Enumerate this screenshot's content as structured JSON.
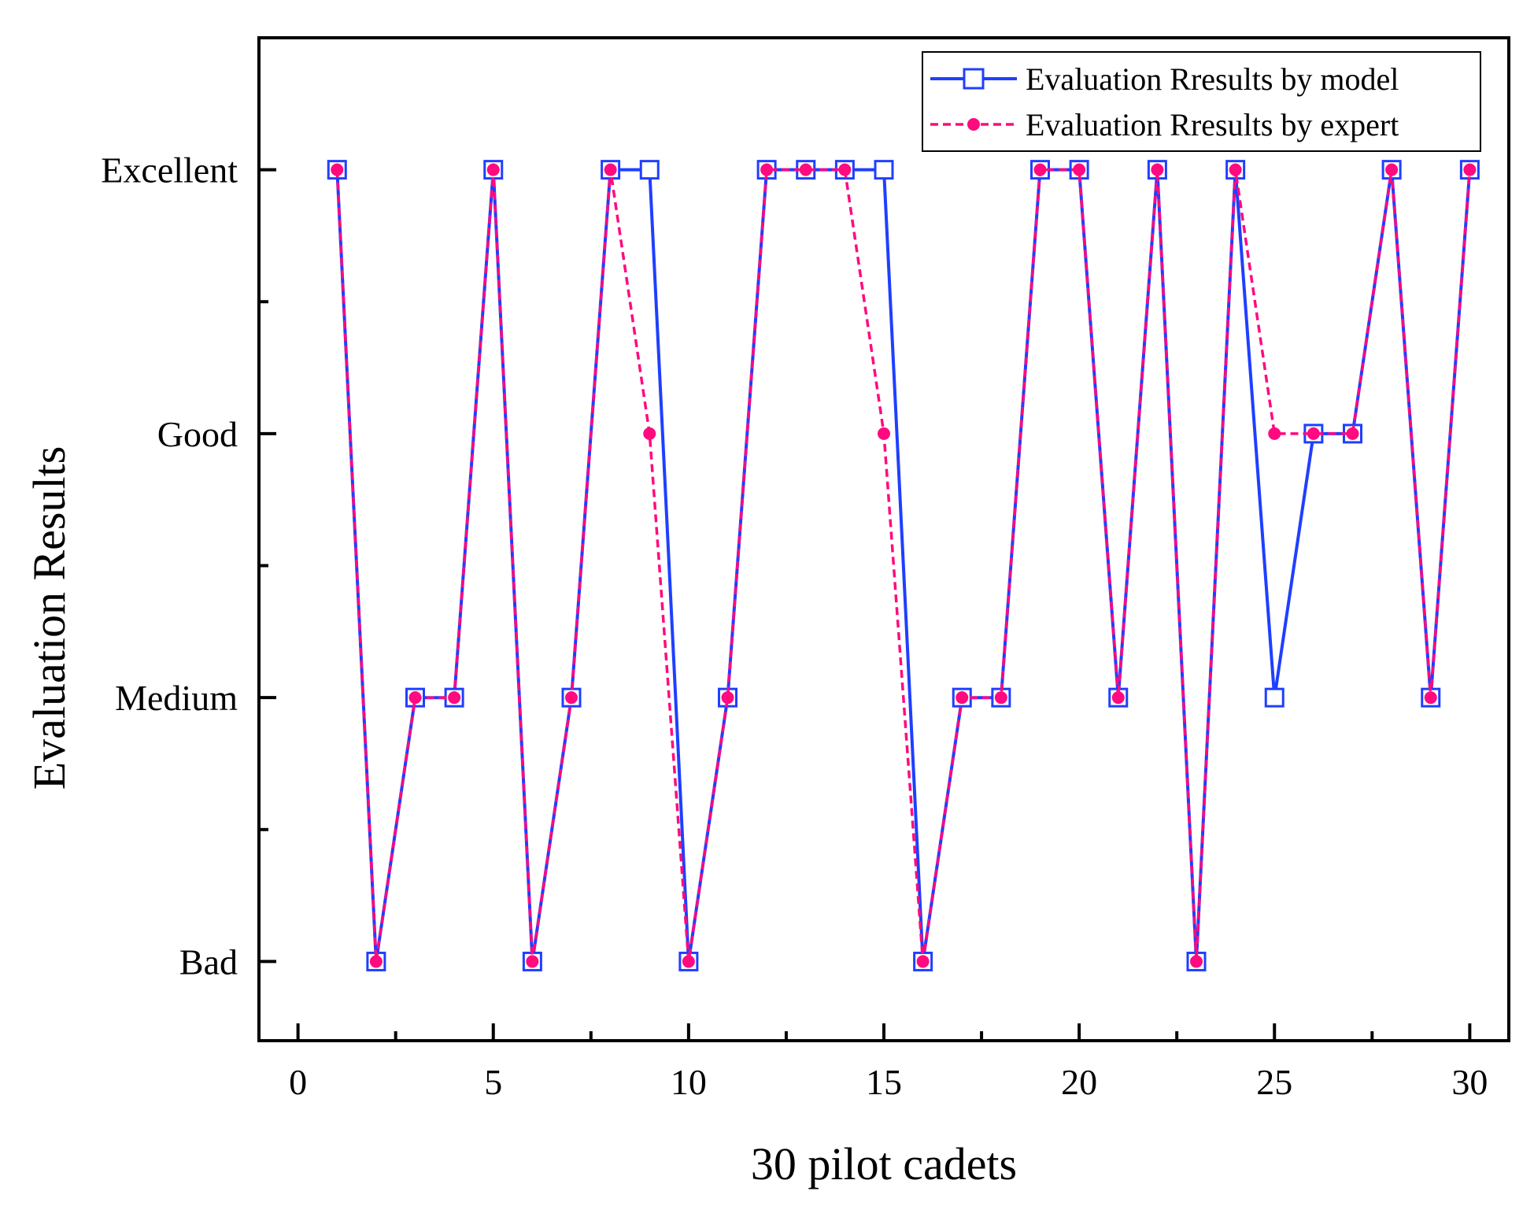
{
  "chart_data": {
    "type": "line",
    "xlabel": "30 pilot cadets",
    "ylabel": "Evaluation Results",
    "xlim": [
      -1,
      31
    ],
    "ylim": [
      0.7,
      4.5
    ],
    "x_ticks": [
      0,
      5,
      10,
      15,
      20,
      25,
      30
    ],
    "y_tick_labels": [
      "Bad",
      "Medium",
      "Good",
      "Excellent"
    ],
    "y_tick_values": [
      1,
      2,
      3,
      4
    ],
    "grid": false,
    "legend_position": "top-right",
    "x": [
      1,
      2,
      3,
      4,
      5,
      6,
      7,
      8,
      9,
      10,
      11,
      12,
      13,
      14,
      15,
      16,
      17,
      18,
      19,
      20,
      21,
      22,
      23,
      24,
      25,
      26,
      27,
      28,
      29,
      30
    ],
    "series": [
      {
        "name": "Evaluation Rresults by model",
        "color": "#1f3fff",
        "marker": "open-square",
        "line": "solid",
        "values": [
          4,
          1,
          2,
          2,
          4,
          1,
          2,
          4,
          4,
          1,
          2,
          4,
          4,
          4,
          4,
          1,
          2,
          2,
          4,
          4,
          2,
          4,
          1,
          4,
          2,
          3,
          3,
          4,
          2,
          4
        ]
      },
      {
        "name": "Evaluation Rresults by expert",
        "color": "#ff0a7f",
        "marker": "filled-circle",
        "line": "dashed",
        "values": [
          4,
          1,
          2,
          2,
          4,
          1,
          2,
          4,
          3,
          1,
          2,
          4,
          4,
          4,
          3,
          1,
          2,
          2,
          4,
          4,
          2,
          4,
          1,
          4,
          3,
          3,
          3,
          4,
          2,
          4
        ]
      }
    ]
  }
}
